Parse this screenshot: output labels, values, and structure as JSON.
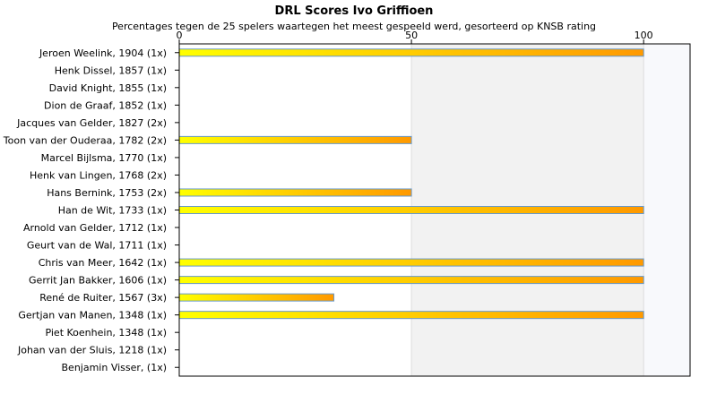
{
  "chart_data": {
    "type": "bar",
    "orientation": "horizontal",
    "title": "DRL Scores Ivo Griffioen",
    "subtitle": "Percentages tegen de 25 spelers waartegen het meest gespeeld werd, gesorteerd op KNSB rating",
    "categories": [
      "Jeroen Weelink, 1904 (1x)",
      "Henk Dissel, 1857 (1x)",
      "David Knight, 1855 (1x)",
      "Dion de Graaf, 1852 (1x)",
      "Jacques van Gelder, 1827 (2x)",
      "Toon van der Ouderaa, 1782 (2x)",
      "Marcel Bijlsma, 1770 (1x)",
      "Henk van Lingen, 1768 (2x)",
      "Hans Bernink, 1753 (2x)",
      "Han de Wit, 1733 (1x)",
      "Arnold van Gelder, 1712 (1x)",
      "Geurt van de Wal, 1711 (1x)",
      "Chris van Meer, 1642 (1x)",
      "Gerrit Jan Bakker, 1606 (1x)",
      "René de Ruiter, 1567 (3x)",
      "Gertjan van Manen, 1348 (1x)",
      "Piet Koenhein, 1348 (1x)",
      "Johan van der Sluis, 1218 (1x)",
      "Benjamin Visser,  (1x)"
    ],
    "values": [
      100,
      0,
      0,
      0,
      0,
      50,
      0,
      0,
      50,
      100,
      0,
      0,
      100,
      100,
      33.3,
      100,
      0,
      0,
      0
    ],
    "xlim": [
      0,
      110
    ],
    "xticks": [
      0,
      50,
      100
    ],
    "grid": true,
    "colors": {
      "bar_start": "#ffff00",
      "bar_end": "#ff9900",
      "bar_border": "#6699cc",
      "band": "#f2f2f2",
      "band_outer": "#f8f9fc",
      "axis": "#000000"
    }
  }
}
